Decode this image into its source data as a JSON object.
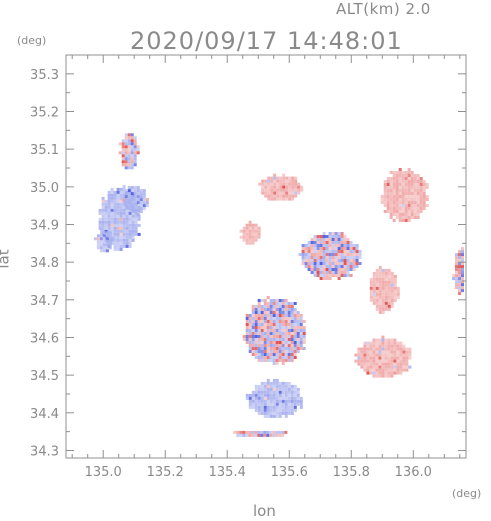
{
  "header": {
    "alt_label": "ALT(km) 2.0",
    "datetime": "2020/09/17 14:48:01"
  },
  "chart_data": {
    "type": "heatmap",
    "title": "2020/09/17 14:48:01",
    "xlabel": "lon",
    "ylabel": "lat",
    "x_unit": "(deg)",
    "y_unit": "(deg)",
    "xlim": [
      134.88,
      136.17
    ],
    "ylim": [
      34.28,
      35.35
    ],
    "x_ticks": [
      135.0,
      135.2,
      135.4,
      135.6,
      135.8,
      136.0
    ],
    "x_tick_labels": [
      "135.0",
      "135.2",
      "135.4",
      "135.6",
      "135.8",
      "136.0"
    ],
    "y_ticks": [
      34.3,
      34.4,
      34.5,
      34.6,
      34.7,
      34.8,
      34.9,
      35.0,
      35.1,
      35.2,
      35.3
    ],
    "y_tick_labels": [
      "34.3",
      "34.4",
      "34.5",
      "34.6",
      "34.7",
      "34.8",
      "34.9",
      "35.0",
      "35.1",
      "35.2",
      "35.3"
    ],
    "colors": {
      "positive": "#f0a8a8",
      "negative": "#a8b0ee",
      "strong_positive": "#e05050",
      "strong_negative": "#5060e0",
      "axis": "#909090"
    },
    "regions": [
      {
        "kind": "negative",
        "lon": 135.05,
        "lat": 34.92,
        "rx": 0.065,
        "ry": 0.085
      },
      {
        "kind": "negative",
        "lon": 135.0,
        "lat": 34.86,
        "rx": 0.03,
        "ry": 0.03
      },
      {
        "kind": "negative",
        "lon": 135.1,
        "lat": 34.97,
        "rx": 0.04,
        "ry": 0.04
      },
      {
        "kind": "positive",
        "lon": 135.57,
        "lat": 35.0,
        "rx": 0.07,
        "ry": 0.035
      },
      {
        "kind": "positive",
        "lon": 135.97,
        "lat": 34.98,
        "rx": 0.075,
        "ry": 0.07
      },
      {
        "kind": "positive",
        "lon": 135.9,
        "lat": 34.73,
        "rx": 0.05,
        "ry": 0.06
      },
      {
        "kind": "positive",
        "lon": 135.9,
        "lat": 34.55,
        "rx": 0.09,
        "ry": 0.055
      },
      {
        "kind": "mixed",
        "lon": 135.55,
        "lat": 34.62,
        "rx": 0.1,
        "ry": 0.09
      },
      {
        "kind": "negative",
        "lon": 135.55,
        "lat": 34.44,
        "rx": 0.09,
        "ry": 0.05
      },
      {
        "kind": "mixed",
        "lon": 135.73,
        "lat": 34.82,
        "rx": 0.1,
        "ry": 0.06
      },
      {
        "kind": "positive",
        "lon": 135.47,
        "lat": 34.88,
        "rx": 0.03,
        "ry": 0.03
      },
      {
        "kind": "mixed",
        "lon": 136.15,
        "lat": 34.78,
        "rx": 0.025,
        "ry": 0.06
      },
      {
        "kind": "mixed",
        "lon": 135.5,
        "lat": 34.35,
        "rx": 0.09,
        "ry": 0.01
      },
      {
        "kind": "mixed",
        "lon": 135.08,
        "lat": 35.1,
        "rx": 0.03,
        "ry": 0.05
      }
    ]
  }
}
